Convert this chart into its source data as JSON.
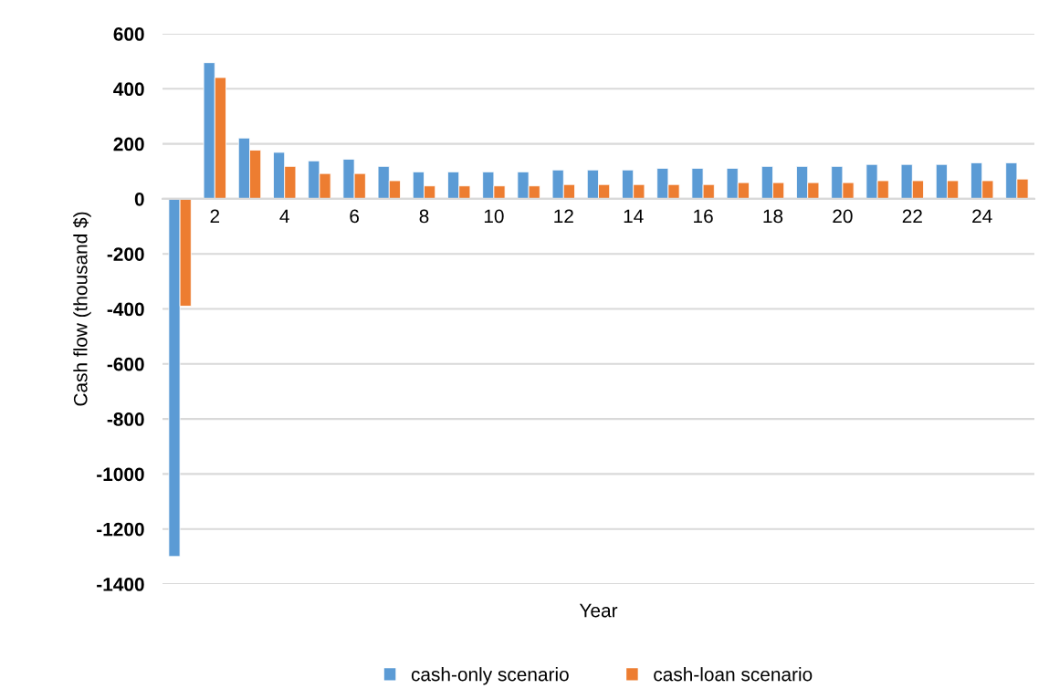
{
  "chart_data": {
    "type": "bar",
    "xlabel": "Year",
    "ylabel": "Cash flow (thousand $)",
    "categories": [
      null,
      "2",
      null,
      "4",
      null,
      "6",
      null,
      "8",
      null,
      "10",
      null,
      "12",
      null,
      "14",
      null,
      "16",
      null,
      "18",
      null,
      "20",
      null,
      "22",
      null,
      "24",
      null
    ],
    "series": [
      {
        "name": "cash-only scenario",
        "color": "#5b9bd5",
        "values": [
          -1300,
          495,
          221,
          169,
          138,
          144,
          118,
          98,
          98,
          98,
          98,
          105,
          105,
          105,
          111,
          111,
          111,
          118,
          118,
          118,
          125,
          125,
          125,
          131,
          131
        ]
      },
      {
        "name": "cash-loan scenario",
        "color": "#ed7d31",
        "values": [
          -390,
          441,
          177,
          118,
          92,
          92,
          66,
          47,
          47,
          47,
          47,
          52,
          52,
          52,
          52,
          52,
          59,
          59,
          59,
          59,
          66,
          66,
          66,
          66,
          72
        ]
      }
    ],
    "ylim": [
      -1400,
      600
    ],
    "yticks": [
      -1400,
      -1200,
      -1000,
      -800,
      -600,
      -400,
      -200,
      0,
      200,
      400,
      600
    ],
    "grid": "y",
    "legend": "bottom"
  }
}
